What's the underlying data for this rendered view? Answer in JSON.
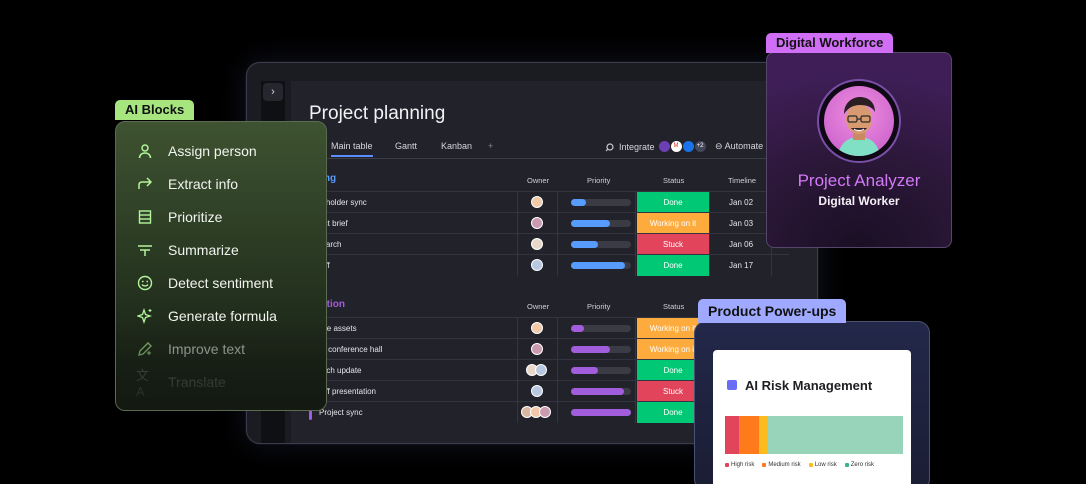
{
  "board": {
    "title": "Project planning",
    "rail_toggle": "›",
    "tabs": [
      "Main table",
      "Gantt",
      "Kanban",
      "+"
    ],
    "integrate_label": "Integrate",
    "integrate_count": "+2",
    "automate_label": "Automate",
    "columns": {
      "owner": "Owner",
      "priority": "Priority",
      "status": "Status",
      "timeline": "Timeline"
    },
    "groups": [
      {
        "title": "Planning",
        "visible_title": "ning",
        "color": "#579bfc",
        "rows": [
          {
            "name": "Stakeholder sync",
            "visible_name": "akeholder sync",
            "priority": 0.25,
            "status": "Done",
            "timeline": "Jan 02"
          },
          {
            "name": "Project brief",
            "visible_name": "oject brief",
            "priority": 0.65,
            "status": "Working on it",
            "timeline": "Jan 03"
          },
          {
            "name": "Research",
            "visible_name": "esearch",
            "priority": 0.45,
            "status": "Stuck",
            "timeline": "Jan 06"
          },
          {
            "name": "Kickoff",
            "visible_name": "ckoff",
            "priority": 0.9,
            "status": "Done",
            "timeline": "Jan 17"
          }
        ]
      },
      {
        "title": "Execution",
        "visible_title": "cution",
        "color": "#a25ddc",
        "rows": [
          {
            "name": "Create assets",
            "visible_name": "reate assets",
            "priority": 0.22,
            "status": "Working on it",
            "timeline": ""
          },
          {
            "name": "Book conference hall",
            "visible_name": "ook conference hall",
            "priority": 0.65,
            "status": "Working on it",
            "timeline": ""
          },
          {
            "name": "Launch update",
            "visible_name": "aunch update",
            "priority": 0.45,
            "status": "Done",
            "timeline": ""
          },
          {
            "name": "Kickoff presentation",
            "visible_name": "ckoff presentation",
            "priority": 0.88,
            "status": "Stuck",
            "timeline": ""
          },
          {
            "name": "Project sync",
            "visible_name": "Project sync",
            "priority": 1.0,
            "status": "Done",
            "timeline": ""
          }
        ]
      }
    ],
    "status_colors": {
      "Done": "#00c875",
      "Working on it": "#fdab3d",
      "Stuck": "#e2445c"
    }
  },
  "ai_blocks": {
    "badge": "AI Blocks",
    "items": [
      {
        "label": "Assign person",
        "icon": "person-icon"
      },
      {
        "label": "Extract info",
        "icon": "arrow-forward-icon"
      },
      {
        "label": "Prioritize",
        "icon": "list-icon"
      },
      {
        "label": "Summarize",
        "icon": "summarize-icon"
      },
      {
        "label": "Detect sentiment",
        "icon": "smiley-icon"
      },
      {
        "label": "Generate formula",
        "icon": "sparkle-icon"
      },
      {
        "label": "Improve text",
        "icon": "pen-icon"
      },
      {
        "label": "Translate",
        "icon": "translate-icon"
      }
    ],
    "accent": "#b4f59c"
  },
  "digital_workforce": {
    "badge": "Digital Workforce",
    "name": "Project Analyzer",
    "role": "Digital Worker",
    "accent": "#d27af7"
  },
  "power_ups": {
    "badge": "Product Power-ups",
    "card_title": "AI Risk Management",
    "legend": [
      "High risk",
      "Medium risk",
      "Low risk",
      "Zero risk"
    ],
    "risk_shares": [
      0.08,
      0.11,
      0.05,
      0.76
    ],
    "risk_colors": [
      "#e2445c",
      "#ff7a1a",
      "#fdbc1d",
      "#98d4b9"
    ]
  }
}
